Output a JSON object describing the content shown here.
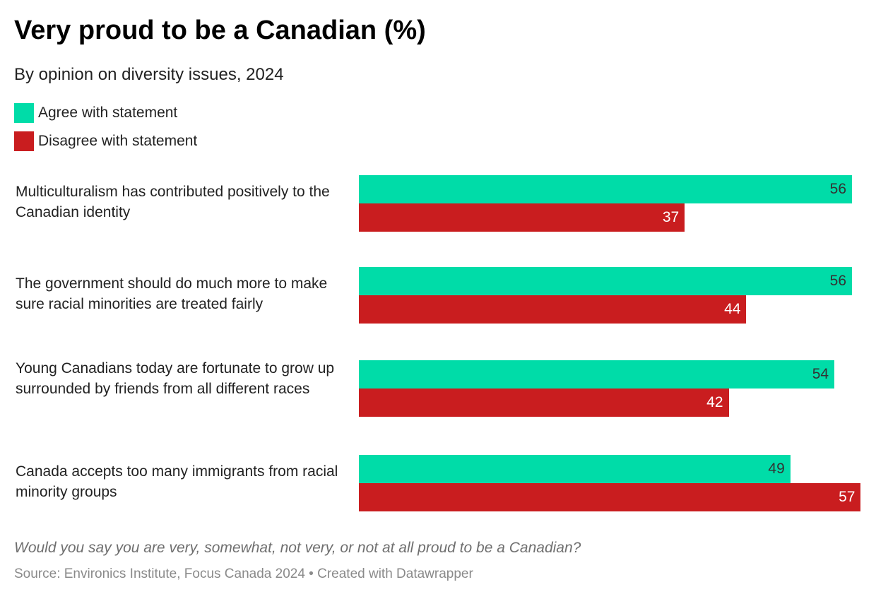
{
  "chart_data": {
    "type": "bar",
    "orientation": "horizontal",
    "title": "Very proud to be a Canadian (%)",
    "subtitle": "By opinion on diversity issues, 2024",
    "categories": [
      "Multiculturalism has contributed positively to the Canadian identity",
      "The government should do much more to make sure racial minorities are treated fairly",
      "Young Canadians today are fortunate to grow up surrounded by friends from all different races",
      "Canada accepts too many immigrants from racial minority groups"
    ],
    "series": [
      {
        "name": "Agree with statement",
        "color": "#00dca8",
        "label_color": "#333333",
        "values": [
          56,
          56,
          54,
          49
        ]
      },
      {
        "name": "Disagree with statement",
        "color": "#c91d1f",
        "label_color": "#ffffff",
        "values": [
          37,
          44,
          42,
          57
        ]
      }
    ],
    "xlim": [
      0,
      57
    ],
    "grid": false,
    "legend": "top-left"
  },
  "note": "Would you say you are very, somewhat, not very, or not at all proud to be a Canadian?",
  "source": "Source: Environics Institute, Focus Canada 2024 • Created with Datawrapper"
}
